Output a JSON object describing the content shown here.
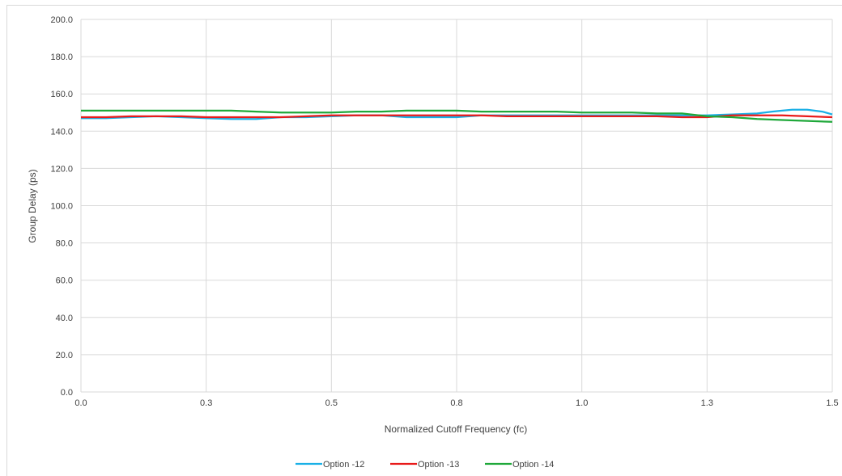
{
  "chart_data": {
    "type": "line",
    "title": "",
    "xlabel": "Normalized Cutoff Frequency (fc)",
    "ylabel": "Group Delay (ps)",
    "xlim": [
      0.0,
      1.5
    ],
    "ylim": [
      0.0,
      200.0
    ],
    "x_ticks": [
      0.0,
      0.25,
      0.5,
      0.75,
      1.0,
      1.25,
      1.5
    ],
    "x_tick_labels": [
      "0.0",
      "0.3",
      "0.5",
      "0.8",
      "1.0",
      "1.3",
      "1.5"
    ],
    "y_ticks": [
      0,
      20,
      40,
      60,
      80,
      100,
      120,
      140,
      160,
      180,
      200
    ],
    "y_tick_labels": [
      "0.0",
      "20.0",
      "40.0",
      "60.0",
      "80.0",
      "100.0",
      "120.0",
      "140.0",
      "160.0",
      "180.0",
      "200.0"
    ],
    "grid": true,
    "legend_position": "bottom",
    "series": [
      {
        "name": "Option -12",
        "color": "#1ab0e6",
        "x": [
          0.0,
          0.05,
          0.1,
          0.15,
          0.2,
          0.25,
          0.3,
          0.35,
          0.4,
          0.45,
          0.5,
          0.55,
          0.6,
          0.65,
          0.7,
          0.75,
          0.8,
          0.85,
          0.9,
          0.95,
          1.0,
          1.05,
          1.1,
          1.15,
          1.2,
          1.25,
          1.3,
          1.35,
          1.38,
          1.4,
          1.42,
          1.45,
          1.48,
          1.5
        ],
        "values": [
          147.0,
          147.0,
          147.5,
          148.0,
          147.5,
          147.0,
          146.5,
          146.5,
          147.5,
          147.5,
          148.0,
          148.5,
          148.5,
          147.5,
          147.5,
          147.5,
          148.5,
          148.5,
          148.5,
          148.5,
          148.5,
          148.5,
          148.5,
          148.5,
          148.5,
          148.5,
          149.0,
          149.5,
          150.5,
          151.0,
          151.5,
          151.5,
          150.5,
          149.0
        ]
      },
      {
        "name": "Option -13",
        "color": "#e81a1a",
        "x": [
          0.0,
          0.05,
          0.1,
          0.15,
          0.2,
          0.25,
          0.3,
          0.35,
          0.4,
          0.45,
          0.5,
          0.55,
          0.6,
          0.65,
          0.7,
          0.75,
          0.8,
          0.85,
          0.9,
          0.95,
          1.0,
          1.05,
          1.1,
          1.15,
          1.2,
          1.25,
          1.3,
          1.35,
          1.4,
          1.45,
          1.5
        ],
        "values": [
          147.5,
          147.5,
          148.0,
          148.0,
          148.0,
          147.5,
          147.5,
          147.5,
          147.5,
          148.0,
          148.5,
          148.5,
          148.5,
          148.5,
          148.5,
          148.5,
          148.5,
          148.0,
          148.0,
          148.0,
          148.0,
          148.0,
          148.0,
          148.0,
          147.5,
          147.5,
          148.5,
          148.5,
          148.5,
          148.0,
          147.5
        ]
      },
      {
        "name": "Option -14",
        "color": "#1fa83a",
        "x": [
          0.0,
          0.05,
          0.1,
          0.15,
          0.2,
          0.25,
          0.3,
          0.35,
          0.4,
          0.45,
          0.5,
          0.55,
          0.6,
          0.65,
          0.7,
          0.75,
          0.8,
          0.85,
          0.9,
          0.95,
          1.0,
          1.05,
          1.1,
          1.15,
          1.2,
          1.25,
          1.3,
          1.35,
          1.4,
          1.45,
          1.5
        ],
        "values": [
          151.0,
          151.0,
          151.0,
          151.0,
          151.0,
          151.0,
          151.0,
          150.5,
          150.0,
          150.0,
          150.0,
          150.5,
          150.5,
          151.0,
          151.0,
          151.0,
          150.5,
          150.5,
          150.5,
          150.5,
          150.0,
          150.0,
          150.0,
          149.5,
          149.5,
          148.0,
          147.5,
          146.5,
          146.0,
          145.5,
          145.0
        ]
      }
    ]
  }
}
